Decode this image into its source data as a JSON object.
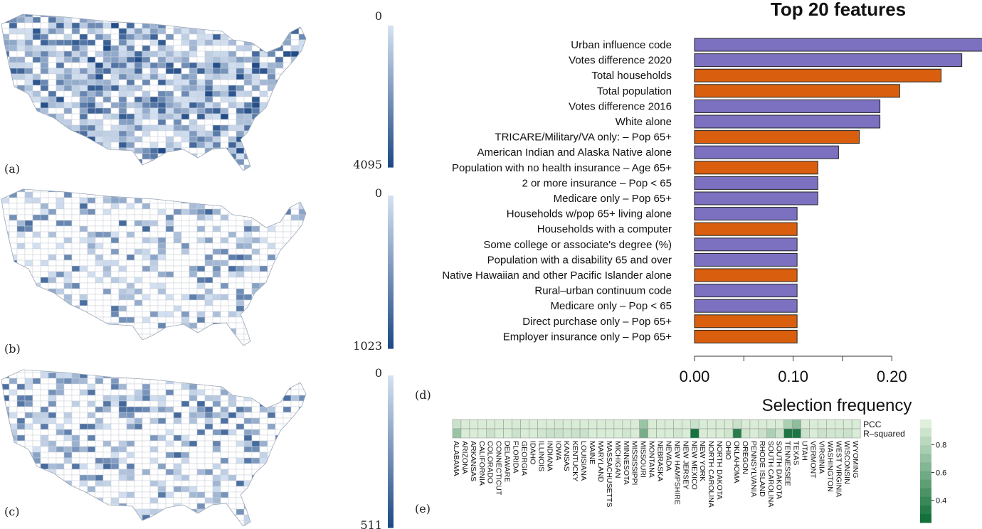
{
  "panel_labels": {
    "a": "(a)",
    "b": "(b)",
    "c": "(c)",
    "d": "(d)",
    "e": "(e)"
  },
  "colors": {
    "purple": "#7b71c0",
    "orange": "#d95f0e",
    "map_light": "#d3e0f1",
    "map_dark": "#1f4a86",
    "heat_light": "#e8f5e2",
    "heat_dark": "#0b6b35"
  },
  "maps": [
    {
      "label": "(a)",
      "colorbar_min": "0",
      "colorbar_max": "4095",
      "density": 0.75
    },
    {
      "label": "(b)",
      "colorbar_min": "0",
      "colorbar_max": "1023",
      "density": 0.32
    },
    {
      "label": "(c)",
      "colorbar_min": "0",
      "colorbar_max": "511",
      "density": 0.4
    }
  ],
  "chart_data": [
    {
      "type": "bar",
      "orientation": "horizontal",
      "title": "Top 20 features",
      "xlabel": "",
      "ylabel": "",
      "xlim": [
        0.0,
        0.29
      ],
      "xticks": [
        0.0,
        0.1,
        0.2
      ],
      "xtick_labels": [
        "0.00",
        "0.10",
        "0.20"
      ],
      "categories": [
        "Urban influence code",
        "Votes difference 2020",
        "Total households",
        "Total population",
        "Votes difference 2016",
        "White alone",
        "TRICARE/Military/VA only: – Pop 65+",
        "American Indian and Alaska Native alone",
        "Population with no health insurance – Age 65+",
        "2 or more insurance – Pop < 65",
        "Medicare only – Pop 65+",
        "Households w/pop 65+ living alone",
        "Households with a computer",
        "Some college or associate's degree (%)",
        "Population with a disability 65 and over",
        "Native Hawaiian and other Pacific Islander alone",
        "Rural–urban continuum code",
        "Medicare only – Pop < 65",
        "Direct purchase only – Pop 65+",
        "Employer insurance only – Pop 65+"
      ],
      "values": [
        0.292,
        0.271,
        0.25,
        0.208,
        0.188,
        0.188,
        0.167,
        0.146,
        0.125,
        0.125,
        0.125,
        0.104,
        0.104,
        0.104,
        0.104,
        0.104,
        0.104,
        0.104,
        0.104,
        0.104
      ],
      "bar_colors": [
        "purple",
        "purple",
        "orange",
        "orange",
        "purple",
        "purple",
        "orange",
        "purple",
        "orange",
        "purple",
        "purple",
        "purple",
        "orange",
        "purple",
        "purple",
        "orange",
        "purple",
        "purple",
        "orange",
        "orange"
      ]
    },
    {
      "type": "heatmap",
      "title": "Selection frequency",
      "rows": [
        "PCC",
        "R–squared"
      ],
      "columns": [
        "ALABAMA",
        "ARIZONA",
        "ARKANSAS",
        "CALIFORNIA",
        "COLORADO",
        "CONNECTICUT",
        "DELAWARE",
        "FLORIDA",
        "GEORGIA",
        "IDAHO",
        "ILLINOIS",
        "INDIANA",
        "IOWA",
        "KANSAS",
        "KENTUCKY",
        "LOUISIANA",
        "MAINE",
        "MARYLAND",
        "MASSACHUSETTS",
        "MICHIGAN",
        "MINNESOTA",
        "MISSISSIPPI",
        "MISSOURI",
        "MONTANA",
        "NEBRASKA",
        "NEVADA",
        "NEW HAMPSHIRE",
        "NEW JERSEY",
        "NEW MEXICO",
        "NEW YORK",
        "NORTH CAROLINA",
        "NORTH DAKOTA",
        "OHIO",
        "OKLAHOMA",
        "OREGON",
        "PENNSYLVANIA",
        "RHODE ISLAND",
        "SOUTH CAROLINA",
        "SOUTH DAKOTA",
        "TENNESSEE",
        "TEXAS",
        "UTAH",
        "VERMONT",
        "VIRGINIA",
        "WASHINGTON",
        "WEST VIRGINIA",
        "WISCONSIN",
        "WYOMING"
      ],
      "values": [
        [
          0.88,
          0.93,
          0.93,
          0.93,
          0.93,
          0.93,
          0.93,
          0.92,
          0.93,
          0.93,
          0.93,
          0.93,
          0.92,
          0.93,
          0.93,
          0.93,
          0.93,
          0.93,
          0.93,
          0.93,
          0.93,
          0.93,
          0.72,
          0.93,
          0.93,
          0.93,
          0.93,
          0.93,
          0.88,
          0.93,
          0.93,
          0.93,
          0.93,
          0.88,
          0.93,
          0.93,
          0.93,
          0.93,
          0.93,
          0.78,
          0.68,
          0.93,
          0.93,
          0.93,
          0.93,
          0.93,
          0.93,
          0.93
        ],
        [
          0.72,
          0.93,
          0.93,
          0.93,
          0.88,
          0.93,
          0.93,
          0.88,
          0.93,
          0.93,
          0.9,
          0.88,
          0.88,
          0.9,
          0.88,
          0.88,
          0.93,
          0.93,
          0.93,
          0.93,
          0.9,
          0.93,
          0.6,
          0.93,
          0.93,
          0.93,
          0.9,
          0.93,
          0.28,
          0.93,
          0.93,
          0.93,
          0.9,
          0.33,
          0.9,
          0.93,
          0.88,
          0.78,
          0.88,
          0.3,
          0.3,
          0.88,
          0.93,
          0.88,
          0.9,
          0.9,
          0.88,
          0.93
        ]
      ],
      "colorbar_ticks": [
        0.4,
        0.6,
        0.8
      ],
      "colorbar_tick_labels": [
        "0.4",
        "0.6",
        "0.8"
      ],
      "colorbar_range": [
        0.24,
        0.98
      ]
    }
  ]
}
